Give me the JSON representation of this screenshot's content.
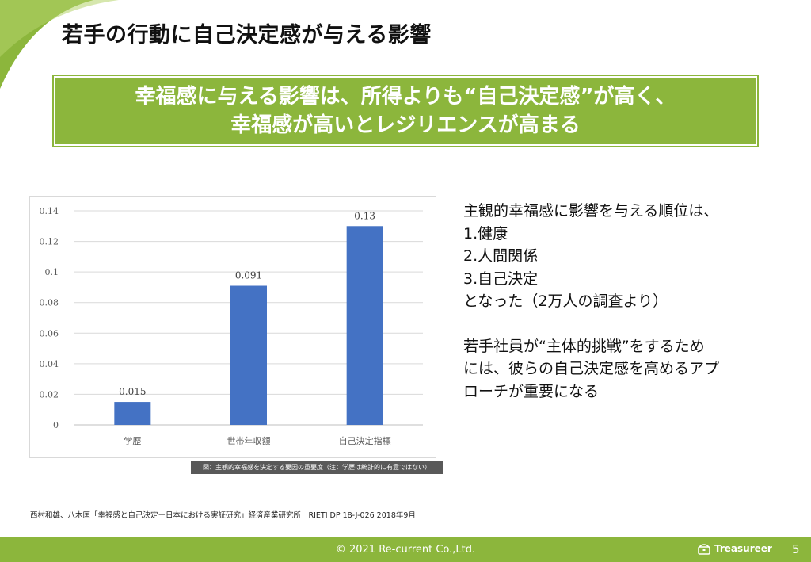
{
  "title": "若手の行動に自己決定感が与える影響",
  "banner": {
    "line1": "幸福感に与える影響は、所得よりも“自己決定感”が高く、",
    "line2": "幸福感が高いとレジリエンスが高まる"
  },
  "chart_data": {
    "type": "bar",
    "categories": [
      "学歴",
      "世帯年収額",
      "自己決定指標"
    ],
    "values": [
      0.015,
      0.091,
      0.13
    ],
    "value_labels": [
      "0.015",
      "0.091",
      "0.13"
    ],
    "ylim": [
      0,
      0.14
    ],
    "yticks": [
      0,
      0.02,
      0.04,
      0.06,
      0.08,
      0.1,
      0.12,
      0.14
    ],
    "ytick_labels": [
      "0",
      "0.02",
      "0.04",
      "0.06",
      "0.08",
      "0.1",
      "0.12",
      "0.14"
    ],
    "bar_color": "#4472c4",
    "grid": true,
    "caption": "図：主観的幸福感を決定する要因の重要度（注：学歴は統計的に有意ではない）"
  },
  "side": {
    "lines1": [
      "主観的幸福感に影響を与える順位は、",
      "1.健康",
      "2.人間関係",
      "3.自己決定",
      "となった（2万人の調査より）"
    ],
    "lines2": [
      "若手社員が“主体的挑戦”をするため",
      "には、彼らの自己決定感を高めるアプ",
      "ローチが重要になる"
    ]
  },
  "source": "西村和雄、八木匡「幸福感と自己決定ー日本における実証研究」経済産業研究所　RIETI DP 18-J-026  2018年9月",
  "footer": {
    "copyright": "© 2021 Re-current Co.,Ltd.",
    "logo": "Treasureer",
    "page_number": "5"
  },
  "colors": {
    "accent": "#8cb63c",
    "bar": "#4472c4"
  }
}
